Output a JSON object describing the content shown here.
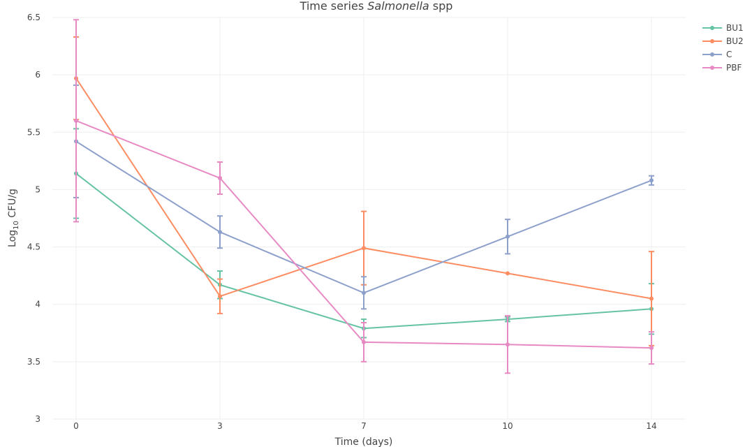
{
  "chart_data": {
    "type": "line",
    "title_prefix": "Time series ",
    "title_italic": "Salmonella",
    "title_suffix": " spp",
    "xlabel": "Time (days)",
    "ylabel_prefix": "Log",
    "ylabel_sub": "10",
    "ylabel_suffix": " CFU/g",
    "x": [
      0,
      3,
      7,
      10,
      14
    ],
    "x_tick_labels": [
      "0",
      "3",
      "7",
      "10",
      "14"
    ],
    "y_tick_values": [
      3,
      3.5,
      4,
      4.5,
      5,
      5.5,
      6,
      6.5
    ],
    "y_tick_labels": [
      "3",
      "3.5",
      "4",
      "4.5",
      "5",
      "5.5",
      "6",
      "6.5"
    ],
    "ylim": [
      3,
      6.5
    ],
    "grid": true,
    "legend_position": "top-right",
    "series": [
      {
        "name": "BU1",
        "color": "#66c2a5",
        "values": [
          5.14,
          4.17,
          3.79,
          3.87,
          3.96
        ],
        "errors": [
          0.39,
          0.12,
          0.08,
          0.02,
          0.22
        ]
      },
      {
        "name": "BU2",
        "color": "#fc8d62",
        "values": [
          5.97,
          4.07,
          4.49,
          4.27,
          4.05
        ],
        "errors": [
          0.36,
          0.15,
          0.32,
          0,
          0.41
        ]
      },
      {
        "name": "C",
        "color": "#8da0cb",
        "values": [
          5.42,
          4.63,
          4.1,
          4.59,
          5.08
        ],
        "errors": [
          0.49,
          0.14,
          0.14,
          0.15,
          0.04
        ]
      },
      {
        "name": "PBF",
        "color": "#e78ac3",
        "values": [
          5.6,
          5.1,
          3.67,
          3.65,
          3.62
        ],
        "errors": [
          0.88,
          0.14,
          0.17,
          0.25,
          0.14
        ]
      }
    ]
  }
}
